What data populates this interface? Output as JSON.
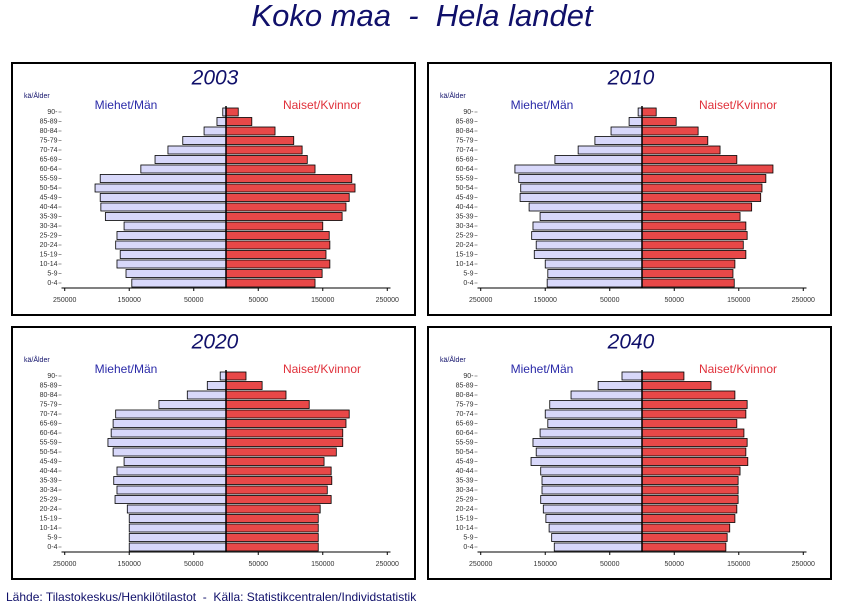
{
  "title": "Koko maa  -  Hela landet",
  "source": "Lähde: Tilastokeskus/Henkilötilastot  -  Källa: Statistikcentralen/Individstatistik",
  "chart_data": [
    {
      "type": "pyramid",
      "title": "2003",
      "y_label": "kä/Ålder",
      "categories": [
        "0-4",
        "5-9",
        "10-14",
        "15-19",
        "20-24",
        "25-29",
        "30-34",
        "35-39",
        "40-44",
        "45-49",
        "50-54",
        "55-59",
        "60-64",
        "65-69",
        "70-74",
        "75-79",
        "80-84",
        "85-89",
        "90-"
      ],
      "series": [
        {
          "name": "Miehet/Män",
          "color": "#d8d8fa",
          "values": [
            -146000,
            -155000,
            -169000,
            -164000,
            -171000,
            -169000,
            -158000,
            -187000,
            -194000,
            -195000,
            -203000,
            -195000,
            -132000,
            -110000,
            -90000,
            -67000,
            -34000,
            -14000,
            -5000
          ]
        },
        {
          "name": "Naiset/Kvinnor",
          "color": "#e84848",
          "values": [
            138000,
            149000,
            161000,
            155000,
            161000,
            160000,
            150000,
            180000,
            186000,
            191000,
            200000,
            195000,
            138000,
            126000,
            118000,
            105000,
            76000,
            40000,
            19000
          ]
        }
      ],
      "xlim": [
        -255000,
        255000
      ],
      "xticks": [
        {
          "value": -250000,
          "label": "250000"
        },
        {
          "value": -150000,
          "label": "150000"
        },
        {
          "value": -50000,
          "label": "50000"
        },
        50000,
        150000,
        250000
      ]
    },
    {
      "type": "pyramid",
      "title": "2010",
      "y_label": "kä/Ålder",
      "categories": [
        "0-4",
        "5-9",
        "10-14",
        "15-19",
        "20-24",
        "25-29",
        "30-34",
        "35-39",
        "40-44",
        "45-49",
        "50-54",
        "55-59",
        "60-64",
        "65-69",
        "70-74",
        "75-79",
        "80-84",
        "85-89",
        "90-"
      ],
      "series": [
        {
          "name": "Miehet/Män",
          "color": "#d8d8fa",
          "values": [
            -147000,
            -146000,
            -150000,
            -167000,
            -164000,
            -171000,
            -169000,
            -158000,
            -175000,
            -189000,
            -188000,
            -191000,
            -197000,
            -135000,
            -99000,
            -73000,
            -48000,
            -20000,
            -6000
          ]
        },
        {
          "name": "Naiset/Kvinnor",
          "color": "#e84848",
          "values": [
            143000,
            141000,
            144000,
            161000,
            157000,
            163000,
            161000,
            152000,
            170000,
            184000,
            186000,
            192000,
            203000,
            147000,
            121000,
            102000,
            87000,
            53000,
            22000
          ]
        }
      ],
      "xlim": [
        -255000,
        255000
      ],
      "xticks": [
        {
          "value": -250000,
          "label": "250000"
        },
        {
          "value": -150000,
          "label": "150000"
        },
        {
          "value": -50000,
          "label": "50000"
        },
        50000,
        150000,
        250000
      ]
    },
    {
      "type": "pyramid",
      "title": "2020",
      "y_label": "kä/Ålder",
      "categories": [
        "0-4",
        "5-9",
        "10-14",
        "15-19",
        "20-24",
        "25-29",
        "30-34",
        "35-39",
        "40-44",
        "45-49",
        "50-54",
        "55-59",
        "60-64",
        "65-69",
        "70-74",
        "75-79",
        "80-84",
        "85-89",
        "90-"
      ],
      "series": [
        {
          "name": "Miehet/Män",
          "color": "#d8d8fa",
          "values": [
            -150000,
            -150000,
            -150000,
            -150000,
            -153000,
            -172000,
            -169000,
            -174000,
            -169000,
            -158000,
            -175000,
            -183000,
            -178000,
            -175000,
            -171000,
            -104000,
            -60000,
            -29000,
            -9000
          ]
        },
        {
          "name": "Naiset/Kvinnor",
          "color": "#e84848",
          "values": [
            143000,
            143000,
            143000,
            143000,
            146000,
            163000,
            157000,
            164000,
            163000,
            152000,
            171000,
            181000,
            181000,
            186000,
            191000,
            129000,
            93000,
            56000,
            31000
          ]
        }
      ],
      "xlim": [
        -255000,
        255000
      ],
      "xticks": [
        {
          "value": -250000,
          "label": "250000"
        },
        {
          "value": -150000,
          "label": "150000"
        },
        {
          "value": -50000,
          "label": "50000"
        },
        50000,
        150000,
        250000
      ]
    },
    {
      "type": "pyramid",
      "title": "2040",
      "y_label": "kä/Ålder",
      "categories": [
        "0-4",
        "5-9",
        "10-14",
        "15-19",
        "20-24",
        "25-29",
        "30-34",
        "35-39",
        "40-44",
        "45-49",
        "50-54",
        "55-59",
        "60-64",
        "65-69",
        "70-74",
        "75-79",
        "80-84",
        "85-89",
        "90-"
      ],
      "series": [
        {
          "name": "Miehet/Män",
          "color": "#d8d8fa",
          "values": [
            -136000,
            -140000,
            -144000,
            -149000,
            -153000,
            -157000,
            -155000,
            -155000,
            -157000,
            -172000,
            -164000,
            -169000,
            -158000,
            -146000,
            -150000,
            -143000,
            -110000,
            -68000,
            -31000
          ]
        },
        {
          "name": "Naiset/Kvinnor",
          "color": "#e84848",
          "values": [
            130000,
            132000,
            136000,
            144000,
            147000,
            149000,
            149000,
            149000,
            152000,
            164000,
            161000,
            163000,
            158000,
            147000,
            161000,
            163000,
            144000,
            107000,
            65000
          ]
        }
      ],
      "xlim": [
        -255000,
        255000
      ],
      "xticks": [
        {
          "value": -250000,
          "label": "250000"
        },
        {
          "value": -150000,
          "label": "150000"
        },
        {
          "value": -50000,
          "label": "50000"
        },
        50000,
        150000,
        250000
      ]
    }
  ]
}
